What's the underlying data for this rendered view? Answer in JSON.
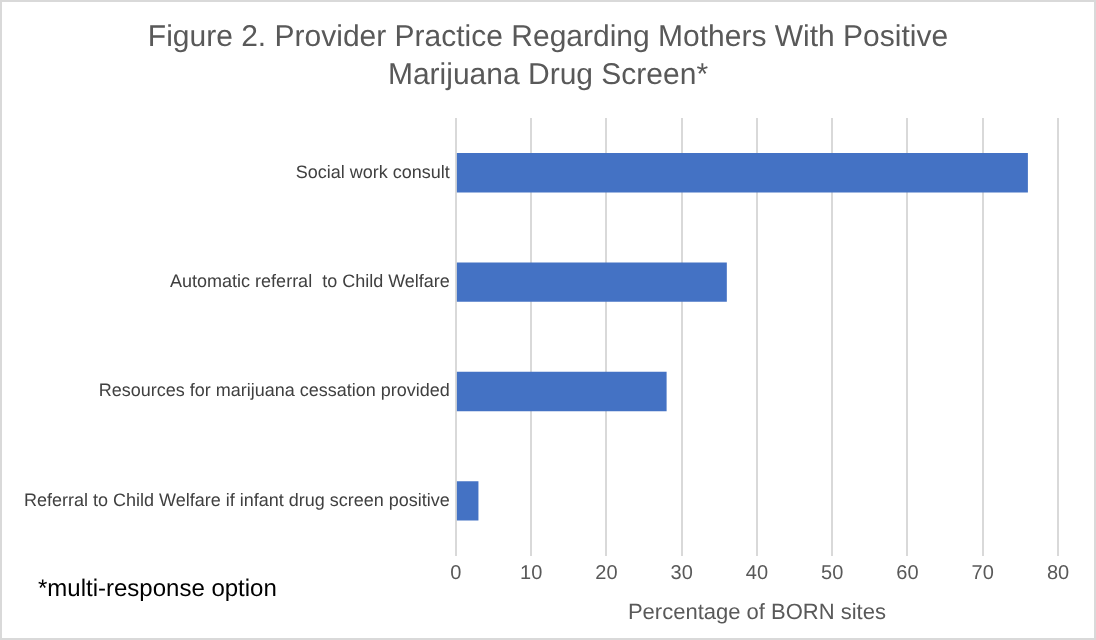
{
  "chart_data": {
    "type": "bar",
    "orientation": "horizontal",
    "title": "Figure 2. Provider Practice Regarding Mothers With Positive Marijuana Drug Screen*",
    "categories": [
      "Social work consult",
      "Automatic referral  to Child Welfare",
      "Resources for marijuana cessation provided",
      "Referral to Child Welfare if infant drug screen positive"
    ],
    "values": [
      76,
      36,
      28,
      3
    ],
    "color": "#4472c4",
    "xlabel": "Percentage of BORN sites",
    "xlim": [
      0,
      80
    ],
    "xticks": [
      0,
      10,
      20,
      30,
      40,
      50,
      60,
      70,
      80
    ],
    "grid": "x",
    "annotations": [
      "*multi-response option"
    ]
  }
}
